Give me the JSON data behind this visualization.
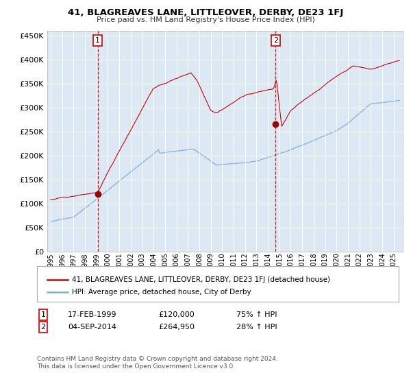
{
  "title": "41, BLAGREAVES LANE, LITTLEOVER, DERBY, DE23 1FJ",
  "subtitle": "Price paid vs. HM Land Registry's House Price Index (HPI)",
  "legend_line1": "41, BLAGREAVES LANE, LITTLEOVER, DERBY, DE23 1FJ (detached house)",
  "legend_line2": "HPI: Average price, detached house, City of Derby",
  "annotation1_date": "17-FEB-1999",
  "annotation1_price": "£120,000",
  "annotation1_hpi": "75% ↑ HPI",
  "annotation2_date": "04-SEP-2014",
  "annotation2_price": "£264,950",
  "annotation2_hpi": "28% ↑ HPI",
  "footnote1": "Contains HM Land Registry data © Crown copyright and database right 2024.",
  "footnote2": "This data is licensed under the Open Government Licence v3.0.",
  "red_line_color": "#cc0000",
  "blue_line_color": "#7fb0d8",
  "background_color": "#ffffff",
  "plot_bg_color": "#dce9f5",
  "grid_color": "#ffffff",
  "dashed_line_color": "#cc0000",
  "marker_color": "#990000",
  "ylim_min": 0,
  "ylim_max": 460000,
  "purchase1_year": 1999.12,
  "purchase1_value": 120000,
  "purchase2_year": 2014.67,
  "purchase2_value": 264950
}
